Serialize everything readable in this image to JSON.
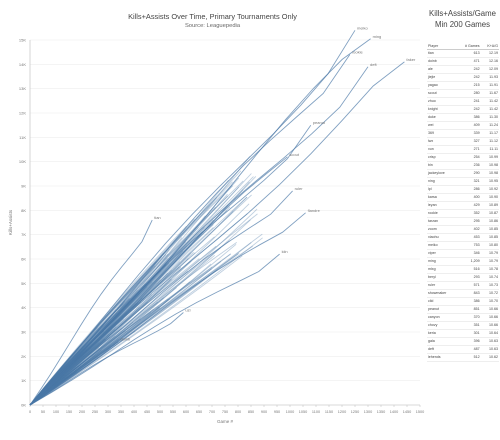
{
  "chart_data": {
    "type": "line",
    "title": "Kills+Assists Over Time, Primary Tournaments Only",
    "subtitle": "Source: Leaguepedia",
    "xlabel": "Game #",
    "ylabel": "Kills+Assists",
    "xlim": [
      0,
      1500
    ],
    "ylim": [
      0,
      15000
    ],
    "x_ticks": [
      0,
      50,
      100,
      150,
      200,
      250,
      300,
      350,
      400,
      450,
      500,
      550,
      600,
      650,
      700,
      750,
      800,
      850,
      900,
      950,
      1000,
      1050,
      1100,
      1150,
      1200,
      1250,
      1300,
      1350,
      1400,
      1450,
      1500
    ],
    "y_ticks": [
      0,
      1000,
      2000,
      3000,
      4000,
      5000,
      6000,
      7000,
      8000,
      9000,
      10000,
      11000,
      12000,
      13000,
      14000,
      15000
    ],
    "y_tick_labels": [
      "0K",
      "1K",
      "2K",
      "3K",
      "4K",
      "5K",
      "6K",
      "7K",
      "8K",
      "9K",
      "10K",
      "11K",
      "12K",
      "13K",
      "14K",
      "15K"
    ],
    "line_color": "#4a78a6",
    "labeled_players": [
      {
        "name": "meiko",
        "games": 1250,
        "ka": 15400
      },
      {
        "name": "ming",
        "games": 1310,
        "ka": 15050
      },
      {
        "name": "rookie",
        "games": 1230,
        "ka": 14400
      },
      {
        "name": "deft",
        "games": 1300,
        "ka": 13900
      },
      {
        "name": "faker",
        "games": 1440,
        "ka": 14100
      },
      {
        "name": "peanut",
        "games": 1080,
        "ka": 11500
      },
      {
        "name": "scout",
        "games": 990,
        "ka": 10200
      },
      {
        "name": "ruler",
        "games": 1010,
        "ka": 8800
      },
      {
        "name": "flandre",
        "games": 1060,
        "ka": 7900
      },
      {
        "name": "tian",
        "games": 470,
        "ka": 7600
      },
      {
        "name": "kiin",
        "games": 960,
        "ka": 6200
      },
      {
        "name": "uzi",
        "games": 590,
        "ka": 3800
      },
      {
        "name": "doinb",
        "games": 340,
        "ka": 2600
      }
    ],
    "table": {
      "title_lines": [
        "Kills+Assists/Game",
        "Min 200 Games"
      ],
      "columns": [
        "Player",
        "# Games",
        "K+A/G"
      ],
      "rows": [
        [
          "tian",
          "613",
          "12.19"
        ],
        [
          "doinb",
          "471",
          "12.16"
        ],
        [
          "ale",
          "242",
          "12.09"
        ],
        [
          "jiejie",
          "242",
          "11.93"
        ],
        [
          "yagao",
          "215",
          "11.91"
        ],
        [
          "scout",
          "280",
          "11.67"
        ],
        [
          "zhuo",
          "241",
          "11.42"
        ],
        [
          "knight",
          "242",
          "11.42"
        ],
        [
          "duke",
          "386",
          "11.30"
        ],
        [
          "wei",
          "409",
          "11.24"
        ],
        [
          "369",
          "339",
          "11.17"
        ],
        [
          "lwx",
          "327",
          "11.12"
        ],
        [
          "xun",
          "271",
          "11.11"
        ],
        [
          "crisp",
          "254",
          "10.99"
        ],
        [
          "bin",
          "236",
          "10.98"
        ],
        [
          "jackeylove",
          "290",
          "10.98"
        ],
        [
          "ning",
          "321",
          "10.95"
        ],
        [
          "lpl",
          "286",
          "10.92"
        ],
        [
          "karsa",
          "400",
          "10.90"
        ],
        [
          "leyan",
          "429",
          "10.89"
        ],
        [
          "rookie",
          "352",
          "10.87"
        ],
        [
          "tarzan",
          "295",
          "10.86"
        ],
        [
          "zoom",
          "402",
          "10.85"
        ],
        [
          "xiaohu",
          "453",
          "10.85"
        ],
        [
          "meiko",
          "753",
          "10.80"
        ],
        [
          "viper",
          "346",
          "10.79"
        ],
        [
          "ming",
          "1,209",
          "10.79"
        ],
        [
          "mlxg",
          "516",
          "10.78"
        ],
        [
          "beryl",
          "293",
          "10.74"
        ],
        [
          "ruler",
          "571",
          "10.73"
        ],
        [
          "showmaker",
          "843",
          "10.72"
        ],
        [
          "clid",
          "386",
          "10.70"
        ],
        [
          "peanut",
          "851",
          "10.66"
        ],
        [
          "canyon",
          "370",
          "10.66"
        ],
        [
          "chovy",
          "351",
          "10.66"
        ],
        [
          "keria",
          "301",
          "10.64"
        ],
        [
          "gala",
          "396",
          "10.63"
        ],
        [
          "deft",
          "487",
          "10.63"
        ],
        [
          "lehends",
          "512",
          "10.62"
        ]
      ]
    }
  }
}
